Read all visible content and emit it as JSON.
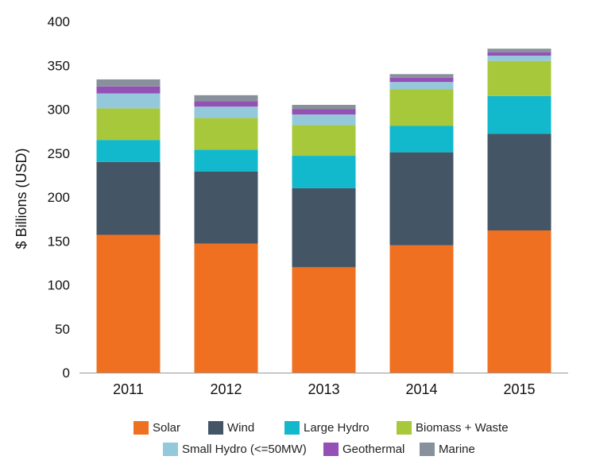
{
  "chart_data": {
    "type": "bar",
    "stacked": true,
    "categories": [
      "2011",
      "2012",
      "2013",
      "2014",
      "2015"
    ],
    "ylabel": "$ Billions (USD)",
    "xlabel": "",
    "ylim": [
      0,
      400
    ],
    "yticks": [
      0,
      50,
      100,
      150,
      200,
      250,
      300,
      350,
      400
    ],
    "grid": false,
    "legend_position": "bottom",
    "series": [
      {
        "name": "Solar",
        "color": "#F07022",
        "values": [
          157,
          147,
          120,
          145,
          162
        ]
      },
      {
        "name": "Wind",
        "color": "#445566",
        "values": [
          83,
          82,
          90,
          106,
          110
        ]
      },
      {
        "name": "Large Hydro",
        "color": "#12B8CC",
        "values": [
          25,
          25,
          37,
          30,
          43
        ]
      },
      {
        "name": "Biomass + Waste",
        "color": "#A7C83A",
        "values": [
          36,
          36,
          35,
          42,
          40
        ]
      },
      {
        "name": "Small Hydro (<=50MW)",
        "color": "#93C9DA",
        "values": [
          17,
          13,
          12,
          8,
          6
        ]
      },
      {
        "name": "Geothermal",
        "color": "#9550B5",
        "values": [
          8,
          6,
          6,
          5,
          4
        ]
      },
      {
        "name": "Marine",
        "color": "#88919B",
        "values": [
          8,
          7,
          5,
          4,
          4
        ]
      }
    ]
  }
}
